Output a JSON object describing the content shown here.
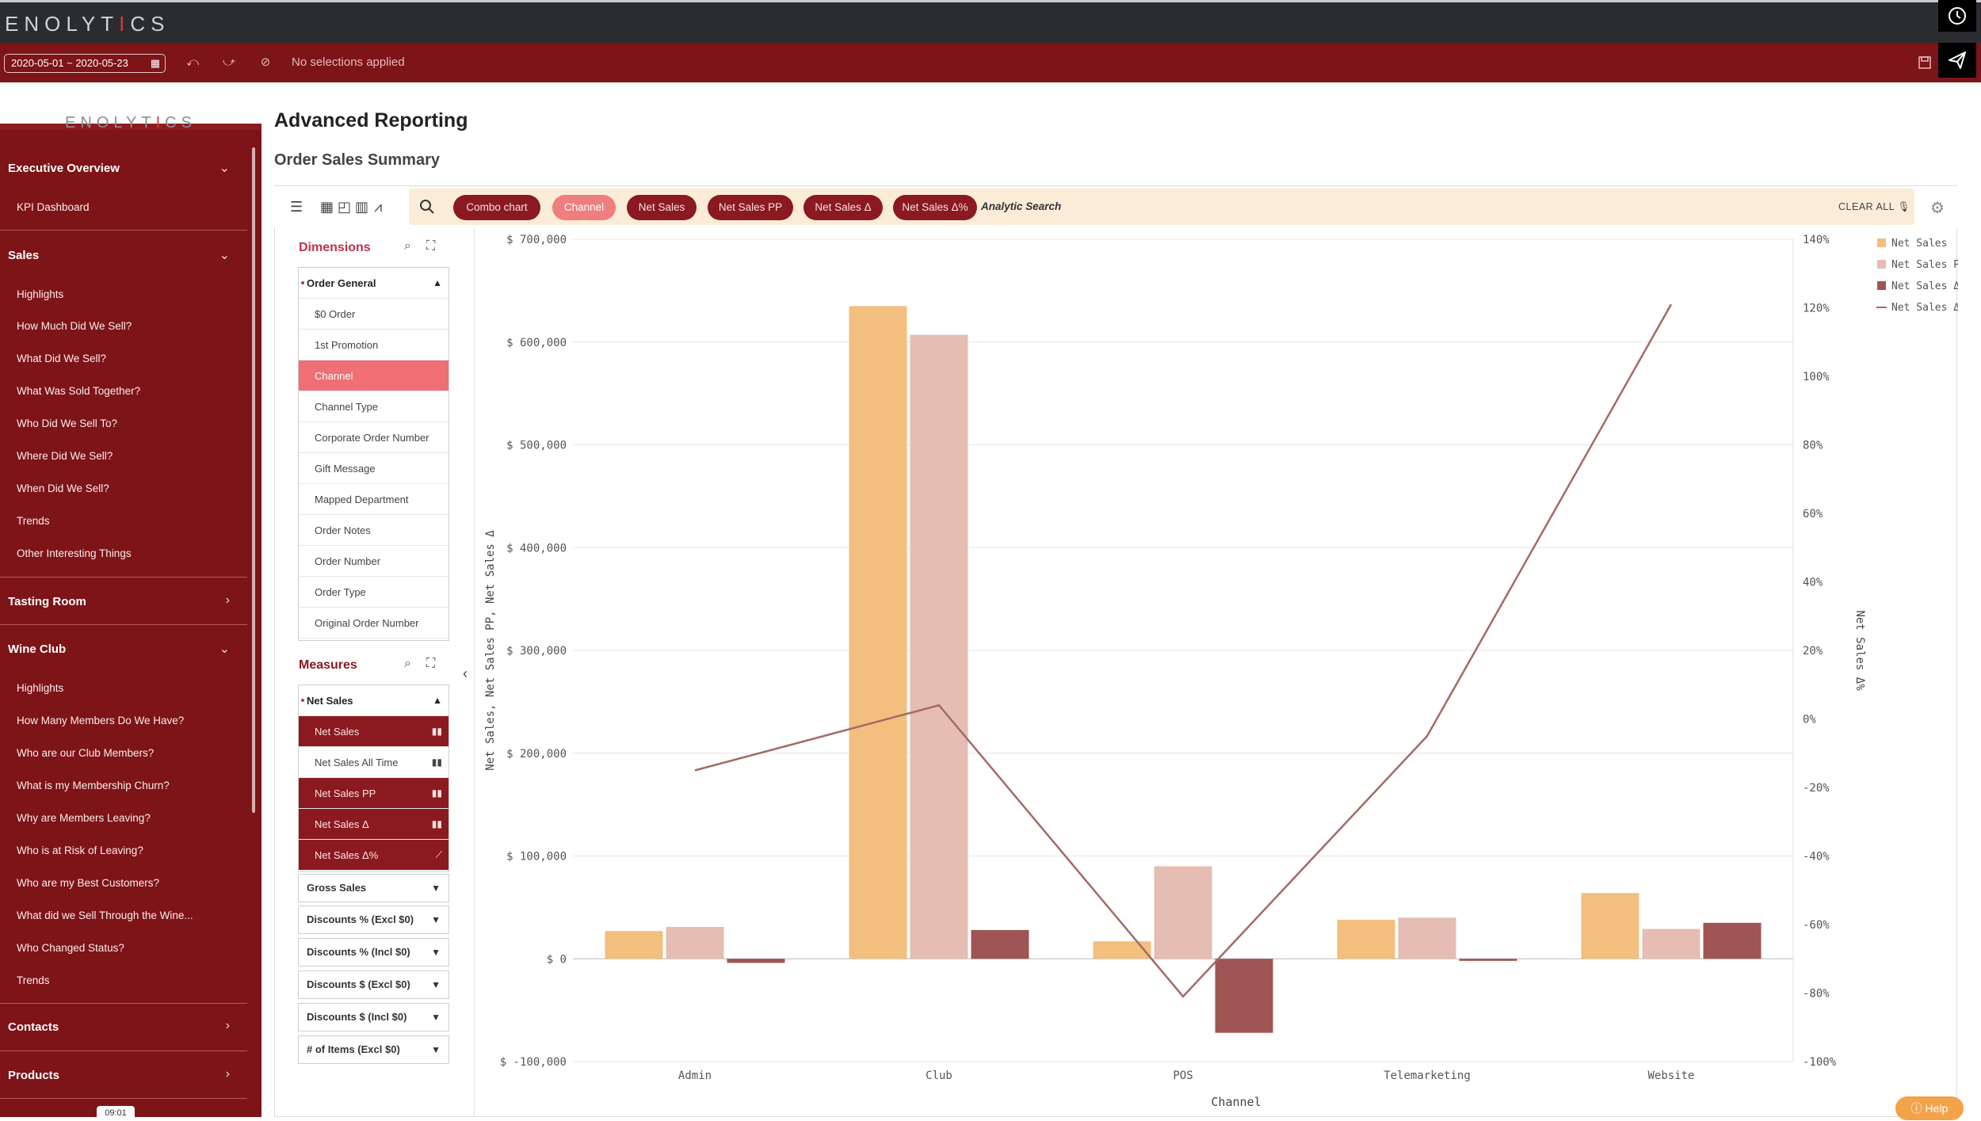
{
  "app": {
    "brand_prefix": "ENOLYT",
    "brand_i": "I",
    "brand_suffix": "CS"
  },
  "selection_bar": {
    "date_range": "2020-05-01 ~ 2020-05-23",
    "status": "No selections applied"
  },
  "sidebar": {
    "time_badge": "09:01",
    "sections": [
      {
        "title": "Executive Overview",
        "expanded": true,
        "items": [
          "KPI Dashboard"
        ]
      },
      {
        "title": "Sales",
        "expanded": true,
        "items": [
          "Highlights",
          "How Much Did We Sell?",
          "What Did We Sell?",
          "What Was Sold Together?",
          "Who Did We Sell To?",
          "Where Did We Sell?",
          "When Did We Sell?",
          "Trends",
          "Other Interesting Things"
        ]
      },
      {
        "title": "Tasting Room",
        "expanded": false,
        "items": []
      },
      {
        "title": "Wine Club",
        "expanded": true,
        "items": [
          "Highlights",
          "How Many Members Do We Have?",
          "Who are our Club Members?",
          "What is my Membership Churn?",
          "Why are Members Leaving?",
          "Who is at Risk of Leaving?",
          "Who are my Best Customers?",
          "What did we Sell Through the Wine...",
          "Who Changed Status?",
          "Trends"
        ]
      },
      {
        "title": "Contacts",
        "expanded": false,
        "items": []
      },
      {
        "title": "Products",
        "expanded": false,
        "items": []
      }
    ]
  },
  "main": {
    "title": "Advanced Reporting",
    "subtitle": "Order Sales Summary",
    "search_pills": [
      "Combo chart",
      "Channel",
      "Net Sales",
      "Net Sales PP",
      "Net Sales Δ",
      "Net Sales Δ%"
    ],
    "analytic_search": "Analytic Search",
    "clear_all": "CLEAR ALL",
    "help": "Help"
  },
  "fields": {
    "dimensions_title": "Dimensions",
    "dimension_group": "Order General",
    "dimensions": [
      "$0 Order",
      "1st Promotion",
      "Channel",
      "Channel Type",
      "Corporate Order Number",
      "Gift Message",
      "Mapped Department",
      "Order Notes",
      "Order Number",
      "Order Type",
      "Original Order Number"
    ],
    "selected_dimension": "Channel",
    "measures_title": "Measures",
    "measure_group": "Net Sales",
    "measures": [
      {
        "label": "Net Sales",
        "selected": true,
        "icon": "bar-chart-icon"
      },
      {
        "label": "Net Sales All Time",
        "selected": false,
        "icon": "bar-chart-icon"
      },
      {
        "label": "Net Sales PP",
        "selected": true,
        "icon": "bar-chart-icon"
      },
      {
        "label": "Net Sales Δ",
        "selected": true,
        "icon": "bar-chart-icon"
      },
      {
        "label": "Net Sales Δ%",
        "selected": true,
        "icon": "line-chart-icon"
      }
    ],
    "collapsed_groups": [
      "Gross Sales",
      "Discounts % (Excl $0)",
      "Discounts % (Incl $0)",
      "Discounts $ (Excl $0)",
      "Discounts $ (Incl $0)",
      "# of Items (Excl $0)"
    ]
  },
  "chart_data": {
    "type": "bar",
    "categories": [
      "Admin",
      "Club",
      "POS",
      "Telemarketing",
      "Website"
    ],
    "series": [
      {
        "name": "Net Sales",
        "type": "bar",
        "axis": "left",
        "color": "#f2bf7e",
        "values": [
          27000,
          635000,
          17000,
          38000,
          64000
        ]
      },
      {
        "name": "Net Sales PP",
        "type": "bar",
        "axis": "left",
        "color": "#e5bdb3",
        "values": [
          31000,
          607000,
          90000,
          40000,
          29000
        ]
      },
      {
        "name": "Net Sales Δ",
        "type": "bar",
        "axis": "left",
        "color": "#9e5553",
        "values": [
          -4000,
          28000,
          -72000,
          -2000,
          35000
        ]
      },
      {
        "name": "Net Sales Δ%",
        "type": "line",
        "axis": "right",
        "color": "#a66966",
        "values": [
          -15,
          4,
          -81,
          -5,
          121
        ]
      }
    ],
    "xlabel": "Channel",
    "ylabel": "Net Sales, Net Sales PP, Net Sales Δ",
    "y2label": "Net Sales Δ%",
    "ylim": [
      -100000,
      700000
    ],
    "y2lim": [
      -100,
      140
    ],
    "yticks": [
      "$ 700,000",
      "$ 600,000",
      "$ 500,000",
      "$ 400,000",
      "$ 300,000",
      "$ 200,000",
      "$ 100,000",
      "$ 0",
      "$ -100,000"
    ],
    "y2ticks": [
      "140%",
      "120%",
      "100%",
      "80%",
      "60%",
      "40%",
      "20%",
      "0%",
      "-20%",
      "-40%",
      "-60%",
      "-80%",
      "-100%"
    ],
    "legend_position": "top-right",
    "grid": true
  }
}
